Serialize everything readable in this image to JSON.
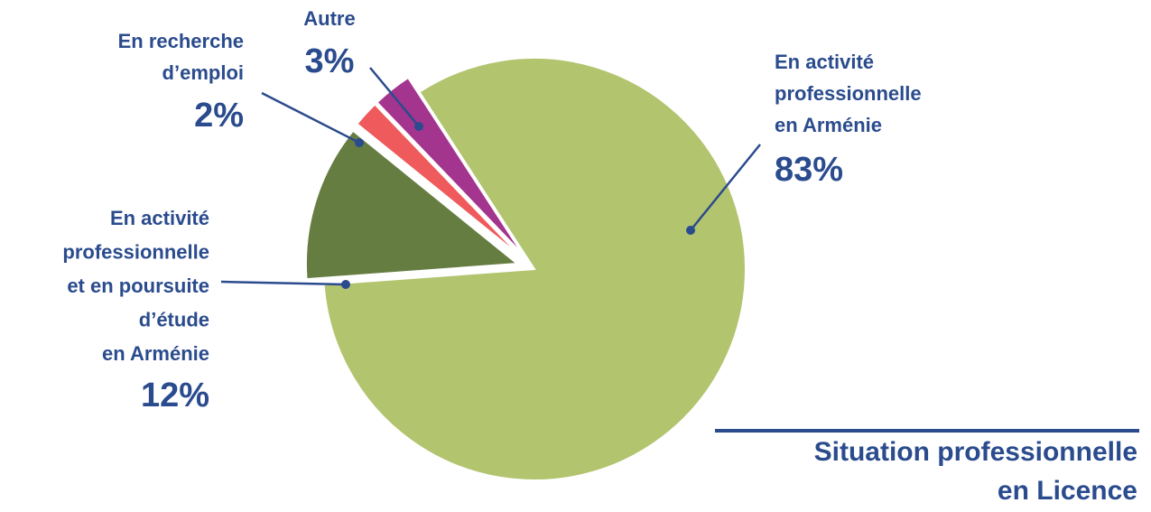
{
  "chart_data": {
    "type": "pie",
    "title": [
      "Situation professionnelle",
      "en Licence"
    ],
    "categories": [
      [
        "En activité",
        "professionnelle",
        "en Arménie"
      ],
      [
        "En activité",
        "professionnelle",
        "et en poursuite",
        "d’étude",
        "en Arménie"
      ],
      [
        "En recherche",
        "d’emploi"
      ],
      [
        "Autre"
      ]
    ],
    "values": [
      83,
      12,
      2,
      3
    ],
    "value_labels": [
      "83%",
      "12%",
      "2%",
      "3%"
    ],
    "colors": [
      "#b2c46e",
      "#667d42",
      "#ef5a5c",
      "#a3358f"
    ]
  }
}
